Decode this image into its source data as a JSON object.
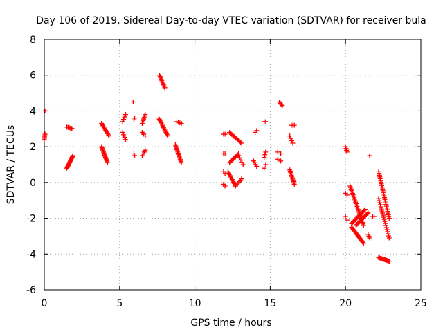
{
  "chart_data": {
    "type": "scatter",
    "title": "Day 106 of 2019, Sidereal Day-to-day VTEC variation (SDTVAR) for receiver bula",
    "xlabel": "GPS time / hours",
    "ylabel": "SDTVAR / TECUs",
    "xlim": [
      0,
      25
    ],
    "ylim": [
      -6,
      8
    ],
    "xticks": [
      0,
      5,
      10,
      15,
      20,
      25
    ],
    "yticks": [
      -6,
      -4,
      -2,
      0,
      2,
      4,
      6,
      8
    ],
    "grid": true,
    "marker": "+",
    "color": "#ff0000",
    "segments": [
      {
        "x": [
          0.0,
          0.05
        ],
        "y": [
          2.4,
          2.7
        ],
        "n": 5
      },
      {
        "x": [
          0.05,
          0.05
        ],
        "y": [
          4.0,
          4.0
        ],
        "n": 1
      },
      {
        "x": [
          1.5,
          1.9
        ],
        "y": [
          3.1,
          3.0
        ],
        "n": 6
      },
      {
        "x": [
          1.5,
          1.9
        ],
        "y": [
          0.8,
          1.5
        ],
        "n": 16
      },
      {
        "x": [
          3.8,
          4.3
        ],
        "y": [
          3.3,
          2.6
        ],
        "n": 12
      },
      {
        "x": [
          3.8,
          4.2
        ],
        "y": [
          2.0,
          1.1
        ],
        "n": 16
      },
      {
        "x": [
          5.2,
          5.4
        ],
        "y": [
          3.4,
          3.8
        ],
        "n": 4
      },
      {
        "x": [
          5.2,
          5.4
        ],
        "y": [
          2.8,
          2.4
        ],
        "n": 4
      },
      {
        "x": [
          5.9,
          5.9
        ],
        "y": [
          4.5,
          4.5
        ],
        "n": 1
      },
      {
        "x": [
          5.95,
          6.0
        ],
        "y": [
          3.5,
          3.6
        ],
        "n": 2
      },
      {
        "x": [
          5.95,
          6.0
        ],
        "y": [
          1.6,
          1.5
        ],
        "n": 2
      },
      {
        "x": [
          6.5,
          6.7
        ],
        "y": [
          3.3,
          3.8
        ],
        "n": 7
      },
      {
        "x": [
          6.5,
          6.7
        ],
        "y": [
          2.8,
          2.6
        ],
        "n": 3
      },
      {
        "x": [
          6.5,
          6.7
        ],
        "y": [
          1.5,
          1.8
        ],
        "n": 4
      },
      {
        "x": [
          7.65,
          8.0
        ],
        "y": [
          6.0,
          5.3
        ],
        "n": 10
      },
      {
        "x": [
          7.6,
          8.2
        ],
        "y": [
          3.6,
          2.6
        ],
        "n": 16
      },
      {
        "x": [
          8.8,
          9.1
        ],
        "y": [
          3.4,
          3.3
        ],
        "n": 4
      },
      {
        "x": [
          8.7,
          9.1
        ],
        "y": [
          2.1,
          1.1
        ],
        "n": 16
      },
      {
        "x": [
          11.9,
          12.0
        ],
        "y": [
          2.7,
          2.7
        ],
        "n": 2
      },
      {
        "x": [
          11.9,
          12.0
        ],
        "y": [
          1.6,
          1.6
        ],
        "n": 2
      },
      {
        "x": [
          11.9,
          12.0
        ],
        "y": [
          0.6,
          0.5
        ],
        "n": 2
      },
      {
        "x": [
          11.9,
          12.0
        ],
        "y": [
          -0.1,
          -0.2
        ],
        "n": 2
      },
      {
        "x": [
          12.3,
          13.1
        ],
        "y": [
          2.8,
          2.2
        ],
        "n": 12
      },
      {
        "x": [
          12.3,
          12.9
        ],
        "y": [
          1.1,
          1.6
        ],
        "n": 10
      },
      {
        "x": [
          12.9,
          13.2
        ],
        "y": [
          1.5,
          1.0
        ],
        "n": 5
      },
      {
        "x": [
          12.2,
          12.7
        ],
        "y": [
          0.6,
          -0.2
        ],
        "n": 12
      },
      {
        "x": [
          12.7,
          13.1
        ],
        "y": [
          -0.2,
          0.2
        ],
        "n": 6
      },
      {
        "x": [
          13.9,
          14.1
        ],
        "y": [
          1.2,
          0.9
        ],
        "n": 4
      },
      {
        "x": [
          14.0,
          14.1
        ],
        "y": [
          2.8,
          2.9
        ],
        "n": 2
      },
      {
        "x": [
          14.6,
          14.7
        ],
        "y": [
          3.4,
          3.4
        ],
        "n": 2
      },
      {
        "x": [
          14.6,
          14.7
        ],
        "y": [
          1.4,
          1.7
        ],
        "n": 3
      },
      {
        "x": [
          14.6,
          14.7
        ],
        "y": [
          0.8,
          1.0
        ],
        "n": 2
      },
      {
        "x": [
          15.6,
          15.8
        ],
        "y": [
          4.5,
          4.3
        ],
        "n": 4
      },
      {
        "x": [
          15.5,
          15.7
        ],
        "y": [
          1.7,
          1.6
        ],
        "n": 2
      },
      {
        "x": [
          15.5,
          15.7
        ],
        "y": [
          1.3,
          1.2
        ],
        "n": 2
      },
      {
        "x": [
          16.3,
          16.5
        ],
        "y": [
          2.6,
          2.2
        ],
        "n": 4
      },
      {
        "x": [
          16.4,
          16.6
        ],
        "y": [
          3.2,
          3.2
        ],
        "n": 3
      },
      {
        "x": [
          16.3,
          16.6
        ],
        "y": [
          0.7,
          -0.1
        ],
        "n": 12
      },
      {
        "x": [
          20.0,
          20.1
        ],
        "y": [
          2.0,
          1.7
        ],
        "n": 4
      },
      {
        "x": [
          20.0,
          20.1
        ],
        "y": [
          -0.6,
          -0.7
        ],
        "n": 2
      },
      {
        "x": [
          20.0,
          20.1
        ],
        "y": [
          -1.9,
          -2.1
        ],
        "n": 2
      },
      {
        "x": [
          20.3,
          21.2
        ],
        "y": [
          -0.2,
          -2.4
        ],
        "n": 28
      },
      {
        "x": [
          20.4,
          21.3
        ],
        "y": [
          -2.3,
          -1.5
        ],
        "n": 16
      },
      {
        "x": [
          20.4,
          21.2
        ],
        "y": [
          -2.5,
          -3.4
        ],
        "n": 18
      },
      {
        "x": [
          20.7,
          21.5
        ],
        "y": [
          -2.4,
          -1.7
        ],
        "n": 14
      },
      {
        "x": [
          21.5,
          21.6
        ],
        "y": [
          -2.9,
          -3.1
        ],
        "n": 3
      },
      {
        "x": [
          21.6,
          21.6
        ],
        "y": [
          1.5,
          1.5
        ],
        "n": 1
      },
      {
        "x": [
          21.8,
          21.9
        ],
        "y": [
          -1.9,
          -1.9
        ],
        "n": 2
      },
      {
        "x": [
          22.2,
          22.9
        ],
        "y": [
          0.6,
          -2.0
        ],
        "n": 28
      },
      {
        "x": [
          22.2,
          22.9
        ],
        "y": [
          -0.9,
          -3.1
        ],
        "n": 20
      },
      {
        "x": [
          22.2,
          22.9
        ],
        "y": [
          -4.2,
          -4.4
        ],
        "n": 14
      }
    ]
  }
}
